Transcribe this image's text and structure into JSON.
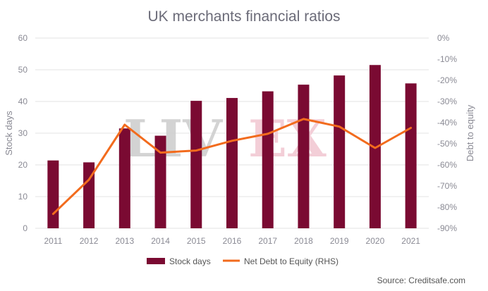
{
  "chart_data": {
    "type": "bar",
    "title": "UK merchants financial ratios",
    "ylabel": "Stock days",
    "y2label": "Debt to equity",
    "categories": [
      "2011",
      "2012",
      "2013",
      "2014",
      "2015",
      "2016",
      "2017",
      "2018",
      "2019",
      "2020",
      "2021"
    ],
    "ylim": [
      0,
      60
    ],
    "y2lim": [
      -90,
      0
    ],
    "yticks": [
      "0",
      "10",
      "20",
      "30",
      "40",
      "50",
      "60"
    ],
    "y2ticks": [
      "0%",
      "-10%",
      "-20%",
      "-30%",
      "-40%",
      "-50%",
      "-60%",
      "-70%",
      "-80%",
      "-90%"
    ],
    "series": [
      {
        "name": "Stock days",
        "kind": "bar",
        "axis": "left",
        "color": "#7a0a32",
        "values": [
          21.4,
          20.8,
          31.5,
          29.2,
          40.2,
          41.1,
          43.2,
          45.3,
          48.2,
          51.5,
          45.7
        ]
      },
      {
        "name": "Net Debt to Equity (RHS)",
        "kind": "line",
        "axis": "right",
        "color": "#f26b1d",
        "values": [
          -83.2,
          -67.0,
          -41.0,
          -54.2,
          -53.2,
          -48.6,
          -45.3,
          -38.3,
          -41.9,
          -52.0,
          -42.5
        ]
      }
    ],
    "grid": true,
    "legend_position": "bottom",
    "watermark": "LIV-EX",
    "source": "Source: Creditsafe.com"
  }
}
